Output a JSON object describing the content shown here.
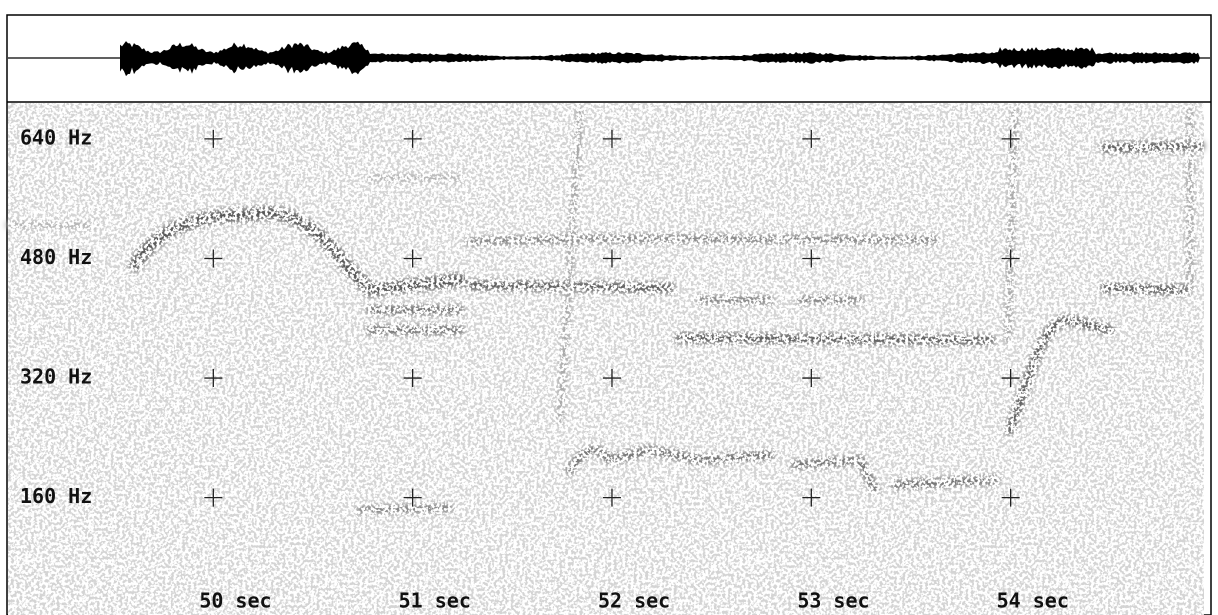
{
  "chart_data": {
    "type": "spectrogram",
    "xlim": [
      48.97,
      54.97
    ],
    "xticks": [
      {
        "value": 50,
        "label": "50 sec"
      },
      {
        "value": 51,
        "label": "51 sec"
      },
      {
        "value": 52,
        "label": "52 sec"
      },
      {
        "value": 53,
        "label": "53 sec"
      },
      {
        "value": 54,
        "label": "54 sec"
      }
    ],
    "ylim": [
      3,
      688
    ],
    "yticks": [
      {
        "value": 640,
        "label": "640 Hz"
      },
      {
        "value": 480,
        "label": "480 Hz"
      },
      {
        "value": 320,
        "label": "320 Hz"
      },
      {
        "value": 160,
        "label": "160 Hz"
      }
    ]
  }
}
